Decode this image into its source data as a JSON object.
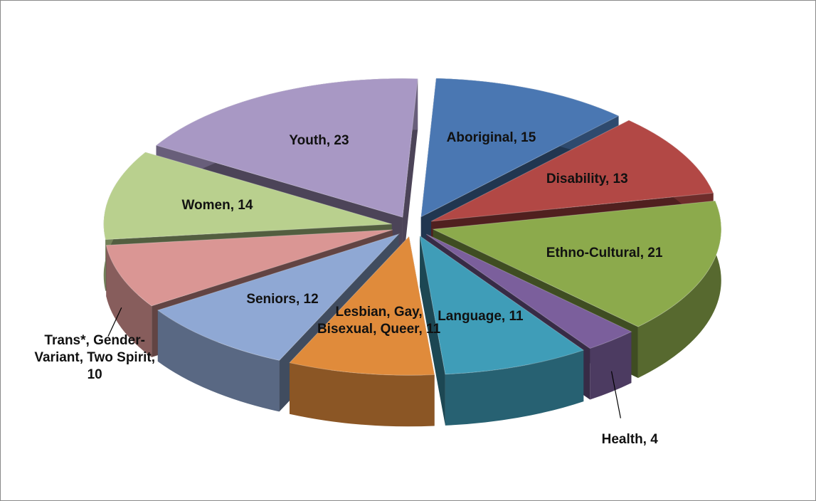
{
  "chart_data": {
    "type": "pie",
    "categories": [
      "Aboriginal",
      "Disability",
      "Ethno-Cultural",
      "Health",
      "Language",
      "Lesbian, Gay, Bisexual, Queer",
      "Seniors",
      "Trans*, Gender-Variant, Two Spirit",
      "Women",
      "Youth"
    ],
    "values": [
      15,
      13,
      21,
      4,
      11,
      11,
      12,
      10,
      14,
      23
    ],
    "value_labels": [
      "Aboriginal, 15",
      "Disability, 13",
      "Ethno-Cultural, 21",
      "Health, 4",
      "Language, 11",
      "Lesbian, Gay, Bisexual, Queer, 11",
      "Seniors, 12",
      "Trans*, Gender-Variant, Two Spirit, 10",
      "Women, 14",
      "Youth, 23"
    ],
    "colors": [
      "#4a77b2",
      "#b24845",
      "#8caa4c",
      "#7b5f9c",
      "#3f9db8",
      "#e08b3b",
      "#8fa8d4",
      "#da9694",
      "#b9d08e",
      "#a898c4"
    ]
  }
}
